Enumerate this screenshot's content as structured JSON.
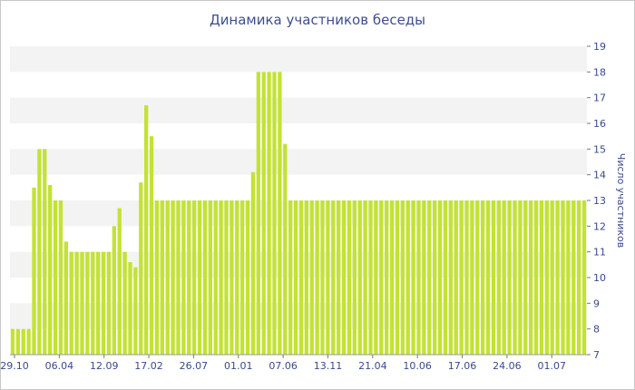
{
  "chart_data": {
    "type": "bar",
    "title": "Динамика участников беседы",
    "ylabel": "Число участников",
    "ylim": [
      7,
      19
    ],
    "yticks": [
      7,
      8,
      9,
      10,
      11,
      12,
      13,
      14,
      15,
      16,
      17,
      18,
      19
    ],
    "xtick_labels": [
      "29.10",
      "06.04",
      "12.09",
      "17.02",
      "26.07",
      "01.01",
      "07.06",
      "13.11",
      "21.04",
      "10.06",
      "17.06",
      "24.06",
      "01.07"
    ],
    "bar_color": "#c3e234",
    "grid": true,
    "values": [
      8,
      8,
      8,
      8,
      13.5,
      15,
      15,
      13.6,
      13,
      13,
      11.4,
      11,
      11,
      11,
      11,
      11,
      11,
      11,
      11,
      12,
      12.7,
      11,
      10.6,
      10.4,
      13.7,
      16.7,
      15.5,
      13,
      13,
      13,
      13,
      13,
      13,
      13,
      13,
      13,
      13,
      13,
      13,
      13,
      13,
      13,
      13,
      13,
      13,
      14.1,
      18,
      18,
      18,
      18,
      18,
      15.2,
      13,
      13,
      13,
      13,
      13,
      13,
      13,
      13,
      13,
      13,
      13,
      13,
      13,
      13,
      13,
      13,
      13,
      13,
      13,
      13,
      13,
      13,
      13,
      13,
      13,
      13,
      13,
      13,
      13,
      13,
      13,
      13,
      13,
      13,
      13,
      13,
      13,
      13,
      13,
      13,
      13,
      13,
      13,
      13,
      13,
      13,
      13,
      13,
      13,
      13,
      13,
      13,
      13,
      13,
      13,
      13
    ]
  }
}
